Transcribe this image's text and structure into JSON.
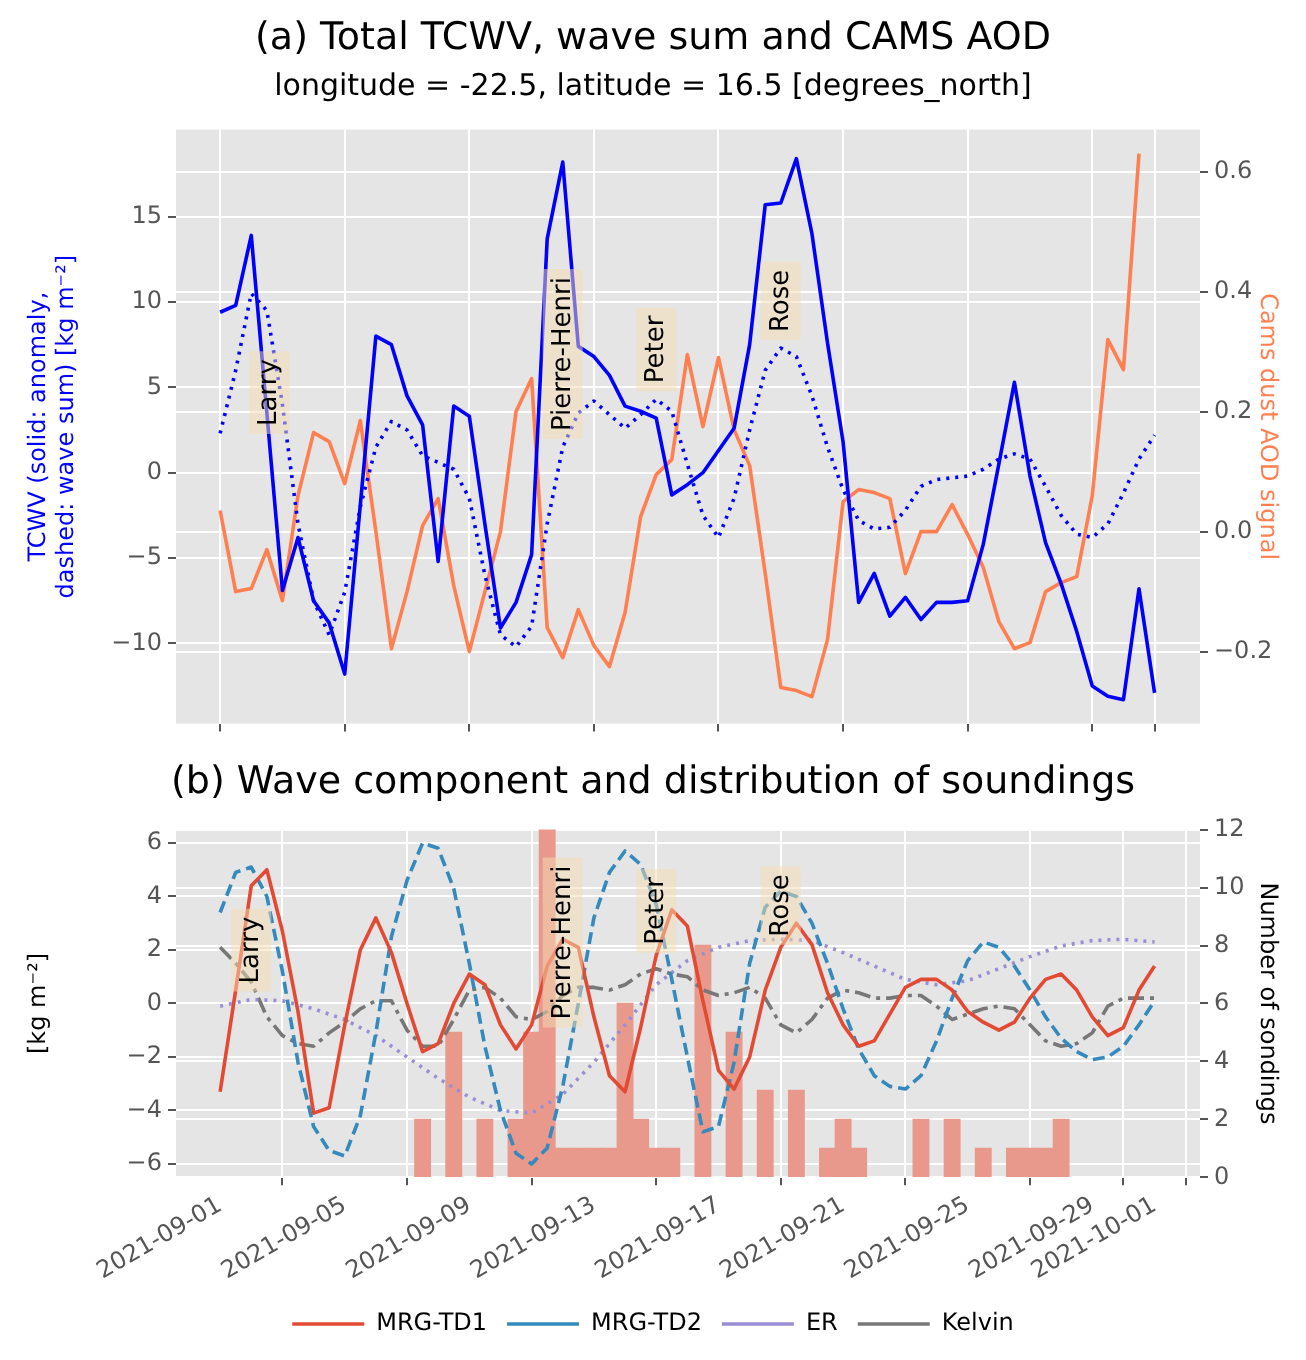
{
  "chart_data": [
    {
      "type": "line",
      "title": "(a) Total TCWV, wave sum and CAMS AOD",
      "subtitle": "longitude = -22.5, latitude = 16.5 [degrees_north]",
      "ylabel": "TCWV (solid: anomaly, dashed: wave sum) [kg m⁻²]",
      "y2label": "Cams dust AOD signal",
      "x": [
        "2021-09-01",
        "2021-09-01T12:00",
        "2021-09-02",
        "2021-09-02T12:00",
        "2021-09-03",
        "2021-09-03T12:00",
        "2021-09-04",
        "2021-09-04T12:00",
        "2021-09-05",
        "2021-09-05T12:00",
        "2021-09-06",
        "2021-09-06T12:00",
        "2021-09-07",
        "2021-09-07T12:00",
        "2021-09-08",
        "2021-09-08T12:00",
        "2021-09-09",
        "2021-09-09T12:00",
        "2021-09-10",
        "2021-09-10T12:00",
        "2021-09-11",
        "2021-09-11T12:00",
        "2021-09-12",
        "2021-09-12T12:00",
        "2021-09-13",
        "2021-09-13T12:00",
        "2021-09-14",
        "2021-09-14T12:00",
        "2021-09-15",
        "2021-09-15T12:00",
        "2021-09-16",
        "2021-09-16T12:00",
        "2021-09-17",
        "2021-09-17T12:00",
        "2021-09-18",
        "2021-09-18T12:00",
        "2021-09-19",
        "2021-09-19T12:00",
        "2021-09-20",
        "2021-09-20T12:00",
        "2021-09-21",
        "2021-09-21T12:00",
        "2021-09-22",
        "2021-09-22T12:00",
        "2021-09-23",
        "2021-09-23T12:00",
        "2021-09-24",
        "2021-09-24T12:00",
        "2021-09-25",
        "2021-09-25T12:00",
        "2021-09-26",
        "2021-09-26T12:00",
        "2021-09-27",
        "2021-09-27T12:00",
        "2021-09-28",
        "2021-09-28T12:00",
        "2021-09-29",
        "2021-09-29T12:00",
        "2021-09-30",
        "2021-09-30T12:00",
        "2021-10-01"
      ],
      "xlim": [
        "2021-08-30T14:00",
        "2021-10-02T11:00"
      ],
      "xticks": [
        "2021-09-01",
        "2021-09-05",
        "2021-09-09",
        "2021-09-13",
        "2021-09-17",
        "2021-09-21",
        "2021-09-25",
        "2021-09-29",
        "2021-10-01"
      ],
      "ylim": [
        -14.7,
        20.1
      ],
      "yticks": [
        {
          "value": -10,
          "label": "−10"
        },
        {
          "value": -5,
          "label": "−5"
        },
        0,
        5,
        10,
        15
      ],
      "y2lim": [
        -0.32,
        0.67
      ],
      "y2ticks": [
        {
          "value": -0.2,
          "label": "−0.2"
        },
        {
          "value": 0,
          "label": "0.0"
        },
        0.2,
        0.4,
        0.6
      ],
      "grid": true,
      "legend": false,
      "tick_labels": "y",
      "marker": "none",
      "annotations": [
        {
          "text": "Larry",
          "x": "2021-09-02T14:00",
          "y": 1.8
        },
        {
          "text": "Pierre-Henri",
          "x": "2021-09-12",
          "y": 1.5
        },
        {
          "text": "Peter",
          "x": "2021-09-15",
          "y": 4.3
        },
        {
          "text": "Rose",
          "x": "2021-09-19",
          "y": 7.3
        }
      ],
      "series": [
        {
          "color": "#0000ff",
          "line_style": "solid",
          "values": [
            9.4,
            9.8,
            13.9,
            3.5,
            -6.9,
            -3.8,
            -7.5,
            -8.8,
            -11.8,
            -1.9,
            8.0,
            7.5,
            4.5,
            2.8,
            -5.2,
            3.9,
            3.3,
            -3.0,
            -9.1,
            -7.6,
            -4.8,
            13.7,
            18.2,
            7.4,
            6.8,
            5.7,
            3.9,
            3.6,
            3.2,
            -1.3,
            -0.7,
            0.0,
            1.3,
            2.6,
            7.5,
            15.7,
            15.8,
            18.4,
            14.0,
            7.6,
            1.8,
            -7.6,
            -5.9,
            -8.4,
            -7.3,
            -8.6,
            -7.6,
            -7.6,
            -7.5,
            -4.2,
            0.5,
            5.3,
            -0.2,
            -4.1,
            -6.5,
            -9.3,
            -12.5,
            -13.1,
            -13.3,
            -6.8,
            -12.9
          ]
        },
        {
          "color": "#0000ff",
          "line_style": "dotted",
          "values": [
            2.3,
            6.0,
            10.5,
            9.5,
            4.0,
            -3.0,
            -7.5,
            -9.5,
            -7.0,
            -2.0,
            1.5,
            3.0,
            2.5,
            1.0,
            0.6,
            0.2,
            -1.5,
            -6.0,
            -9.5,
            -10.2,
            -9.0,
            -3.0,
            1.5,
            3.5,
            4.2,
            3.4,
            2.6,
            3.4,
            4.3,
            3.6,
            0.5,
            -2.5,
            -3.8,
            -1.5,
            2.5,
            6.0,
            7.3,
            6.8,
            4.5,
            1.5,
            -1.0,
            -2.8,
            -3.3,
            -3.2,
            -2.2,
            -0.8,
            -0.4,
            -0.3,
            -0.2,
            0.2,
            0.8,
            1.1,
            0.8,
            -0.8,
            -2.5,
            -3.6,
            -3.8,
            -3.0,
            -1.2,
            0.8,
            2.2
          ]
        },
        {
          "color": "#ff7f50",
          "line_style": "solid",
          "axis": "y2",
          "values": [
            0.035,
            -0.1,
            -0.095,
            -0.03,
            -0.115,
            0.06,
            0.165,
            0.15,
            0.08,
            0.185,
            0.0,
            -0.195,
            -0.1,
            0.01,
            0.055,
            -0.09,
            -0.2,
            -0.1,
            0.0,
            0.2,
            0.255,
            -0.16,
            -0.21,
            -0.13,
            -0.19,
            -0.225,
            -0.135,
            0.025,
            0.095,
            0.12,
            0.295,
            0.175,
            0.29,
            0.17,
            0.11,
            -0.07,
            -0.26,
            -0.265,
            -0.275,
            -0.18,
            0.05,
            0.07,
            0.065,
            0.055,
            -0.07,
            0.0,
            0.0,
            0.045,
            -0.005,
            -0.06,
            -0.15,
            -0.195,
            -0.185,
            -0.1,
            -0.085,
            -0.075,
            0.06,
            0.32,
            0.27,
            0.63,
            null
          ]
        }
      ]
    },
    {
      "type": "line",
      "title": "(b) Wave component and distribution of soundings",
      "ylabel": "[kg m⁻²]",
      "y2label": "Number of sondings",
      "x": [
        "2021-09-01",
        "2021-09-01T12:00",
        "2021-09-02",
        "2021-09-02T12:00",
        "2021-09-03",
        "2021-09-03T12:00",
        "2021-09-04",
        "2021-09-04T12:00",
        "2021-09-05",
        "2021-09-05T12:00",
        "2021-09-06",
        "2021-09-06T12:00",
        "2021-09-07",
        "2021-09-07T12:00",
        "2021-09-08",
        "2021-09-08T12:00",
        "2021-09-09",
        "2021-09-09T12:00",
        "2021-09-10",
        "2021-09-10T12:00",
        "2021-09-11",
        "2021-09-11T12:00",
        "2021-09-12",
        "2021-09-12T12:00",
        "2021-09-13",
        "2021-09-13T12:00",
        "2021-09-14",
        "2021-09-14T12:00",
        "2021-09-15",
        "2021-09-15T12:00",
        "2021-09-16",
        "2021-09-16T12:00",
        "2021-09-17",
        "2021-09-17T12:00",
        "2021-09-18",
        "2021-09-18T12:00",
        "2021-09-19",
        "2021-09-19T12:00",
        "2021-09-20",
        "2021-09-20T12:00",
        "2021-09-21",
        "2021-09-21T12:00",
        "2021-09-22",
        "2021-09-22T12:00",
        "2021-09-23",
        "2021-09-23T12:00",
        "2021-09-24",
        "2021-09-24T12:00",
        "2021-09-25",
        "2021-09-25T12:00",
        "2021-09-26",
        "2021-09-26T12:00",
        "2021-09-27",
        "2021-09-27T12:00",
        "2021-09-28",
        "2021-09-28T12:00",
        "2021-09-29",
        "2021-09-29T12:00",
        "2021-09-30",
        "2021-09-30T12:00",
        "2021-10-01"
      ],
      "xlim": [
        "2021-08-30T14:00",
        "2021-10-02T11:00"
      ],
      "xticks": [
        "2021-09-01",
        "2021-09-05",
        "2021-09-09",
        "2021-09-13",
        "2021-09-17",
        "2021-09-21",
        "2021-09-25",
        "2021-09-29",
        "2021-10-01"
      ],
      "ylim": [
        -6.5,
        6.5
      ],
      "yticks": [
        {
          "value": -6,
          "label": "−6"
        },
        {
          "value": -4,
          "label": "−4"
        },
        {
          "value": -2,
          "label": "−2"
        },
        0,
        2,
        4,
        6
      ],
      "y2lim": [
        0,
        12
      ],
      "y2ticks": [
        0,
        2,
        4,
        6,
        8,
        10,
        12
      ],
      "grid": true,
      "legend": "bottom",
      "marker": "none",
      "annotations": [
        {
          "text": "Larry",
          "x": "2021-09-02",
          "y": 0.15
        },
        {
          "text": "Pierre-Henri",
          "x": "2021-09-12",
          "y": -1.2
        },
        {
          "text": "Peter",
          "x": "2021-09-15",
          "y": 1.6
        },
        {
          "text": "Rose",
          "x": "2021-09-19",
          "y": 1.9
        }
      ],
      "series": [
        {
          "type": "bar",
          "axis": "y2",
          "color": "#e8998c",
          "x": [
            "2021-09-07T12:00",
            "2021-09-08T12:00",
            "2021-09-09T12:00",
            "2021-09-10T12:00",
            "2021-09-11",
            "2021-09-11T12:00",
            "2021-09-12",
            "2021-09-12T12:00",
            "2021-09-13",
            "2021-09-13T12:00",
            "2021-09-14",
            "2021-09-14T12:00",
            "2021-09-15",
            "2021-09-15T12:00",
            "2021-09-16T12:00",
            "2021-09-17T12:00",
            "2021-09-18T12:00",
            "2021-09-19T12:00",
            "2021-09-20T12:00",
            "2021-09-21",
            "2021-09-21T12:00",
            "2021-09-23T12:00",
            "2021-09-24T12:00",
            "2021-09-25T12:00",
            "2021-09-26T12:00",
            "2021-09-27",
            "2021-09-27T12:00",
            "2021-09-28"
          ],
          "values": [
            2,
            5,
            2,
            2,
            5,
            12,
            1,
            1,
            1,
            1,
            6,
            2,
            1,
            1,
            8,
            5,
            3,
            3,
            1,
            2,
            1,
            2,
            2,
            1,
            1,
            1,
            1,
            2
          ]
        },
        {
          "name": "MRG-TD1",
          "color": "#e24a33",
          "line_style": "solid",
          "values": [
            -3.3,
            0.5,
            4.4,
            5.0,
            2.7,
            -0.3,
            -4.1,
            -3.9,
            -0.8,
            2.0,
            3.2,
            1.9,
            0.0,
            -1.8,
            -1.5,
            0.0,
            1.1,
            0.7,
            -0.8,
            -1.7,
            -0.8,
            1.4,
            2.4,
            2.1,
            -0.5,
            -2.7,
            -3.3,
            -0.9,
            1.8,
            3.5,
            2.9,
            0.1,
            -2.5,
            -3.2,
            -2.0,
            0.5,
            2.1,
            3.0,
            2.2,
            0.4,
            -0.8,
            -1.6,
            -1.4,
            -0.4,
            0.6,
            0.9,
            0.9,
            0.5,
            -0.3,
            -0.7,
            -1.0,
            -0.7,
            0.2,
            0.9,
            1.1,
            0.5,
            -0.5,
            -1.2,
            -0.9,
            0.5,
            1.4
          ]
        },
        {
          "name": "MRG-TD2",
          "color": "#348abd",
          "line_style": "dashed",
          "values": [
            3.4,
            4.9,
            5.1,
            4.0,
            1.2,
            -2.2,
            -4.6,
            -5.5,
            -5.7,
            -4.2,
            -1.1,
            2.5,
            4.6,
            6.0,
            5.8,
            4.3,
            1.5,
            -1.6,
            -4.0,
            -5.6,
            -6.0,
            -5.4,
            -3.1,
            0.0,
            3.2,
            4.9,
            5.7,
            5.2,
            3.7,
            0.9,
            -2.0,
            -4.8,
            -4.6,
            -2.2,
            1.5,
            3.6,
            4.2,
            4.0,
            3.0,
            1.5,
            -0.2,
            -1.7,
            -2.7,
            -3.1,
            -3.2,
            -2.7,
            -1.4,
            0.2,
            1.6,
            2.3,
            2.1,
            1.4,
            0.5,
            -0.5,
            -1.3,
            -1.8,
            -2.1,
            -2.0,
            -1.6,
            -0.8,
            0.1
          ]
        },
        {
          "name": "ER",
          "color": "#988ed5",
          "line_style": "dotted",
          "x": [
            "2021-09-01",
            "2021-09-02",
            "2021-09-03",
            "2021-09-04",
            "2021-09-05",
            "2021-09-06",
            "2021-09-07",
            "2021-09-08",
            "2021-09-09",
            "2021-09-10",
            "2021-09-11",
            "2021-09-12",
            "2021-09-13",
            "2021-09-14",
            "2021-09-15",
            "2021-09-16",
            "2021-09-17",
            "2021-09-18",
            "2021-09-19",
            "2021-09-20",
            "2021-09-21",
            "2021-09-22",
            "2021-09-23",
            "2021-09-24",
            "2021-09-25",
            "2021-09-26",
            "2021-09-27",
            "2021-09-28",
            "2021-09-29",
            "2021-09-30",
            "2021-10-01"
          ],
          "values": [
            -0.1,
            0.15,
            0.1,
            -0.2,
            -0.6,
            -1.2,
            -2.0,
            -2.8,
            -3.5,
            -4.0,
            -4.1,
            -3.4,
            -2.2,
            -0.8,
            0.7,
            1.6,
            2.1,
            2.35,
            2.4,
            2.35,
            1.9,
            1.4,
            0.9,
            0.7,
            0.85,
            1.3,
            1.75,
            2.15,
            2.35,
            2.4,
            2.3
          ]
        },
        {
          "name": "Kelvin",
          "color": "#777777",
          "line_style": "dashdot",
          "values": [
            2.1,
            1.5,
            0.8,
            -0.5,
            -1.2,
            -1.5,
            -1.6,
            -1.1,
            -0.7,
            -0.2,
            0.1,
            0.1,
            -1.0,
            -1.6,
            -1.6,
            -0.6,
            0.5,
            0.6,
            0.2,
            -0.5,
            -0.6,
            -0.3,
            0.3,
            0.6,
            0.6,
            0.5,
            0.7,
            1.1,
            1.3,
            1.1,
            1.0,
            0.5,
            0.3,
            0.4,
            0.6,
            0.2,
            -0.8,
            -1.1,
            -0.6,
            0.2,
            0.5,
            0.4,
            0.2,
            0.2,
            0.3,
            0.3,
            -0.1,
            -0.6,
            -0.4,
            -0.2,
            -0.1,
            -0.2,
            -0.8,
            -1.4,
            -1.6,
            -1.5,
            -1.1,
            -0.1,
            0.2,
            0.2,
            0.2
          ]
        }
      ]
    }
  ]
}
